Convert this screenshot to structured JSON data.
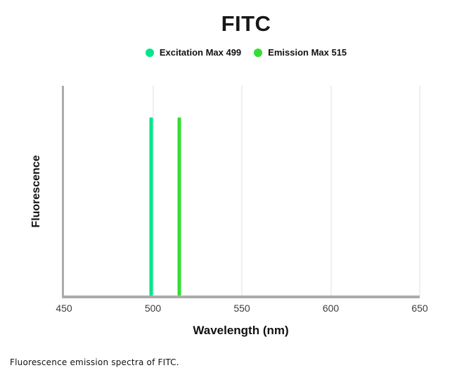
{
  "page": {
    "caption": "Fluorescence emission spectra of FITC."
  },
  "chart_data": {
    "type": "line",
    "subtype": "vertical-spectral-peak-lines",
    "title": "FITC",
    "xlabel": "Wavelength (nm)",
    "ylabel": "Fluorescence",
    "xlim": [
      450,
      650
    ],
    "x_ticks": [
      450,
      500,
      550,
      600,
      650
    ],
    "x_gridlines": [
      500,
      550,
      600,
      650
    ],
    "grid": "vertical-only",
    "legend_position": "top-center",
    "series": [
      {
        "name": "Excitation Max 499",
        "x": 499,
        "peak_height_frac": 0.85,
        "color": "#00E68C"
      },
      {
        "name": "Emission Max 515",
        "x": 515,
        "peak_height_frac": 0.85,
        "color": "#33DD33"
      }
    ],
    "colors": {
      "axis": "#ABABAB",
      "gridline": "#EFEFEF",
      "tick_text": "#3D3D3D",
      "text": "#111111",
      "background": "#FFFFFF"
    }
  }
}
